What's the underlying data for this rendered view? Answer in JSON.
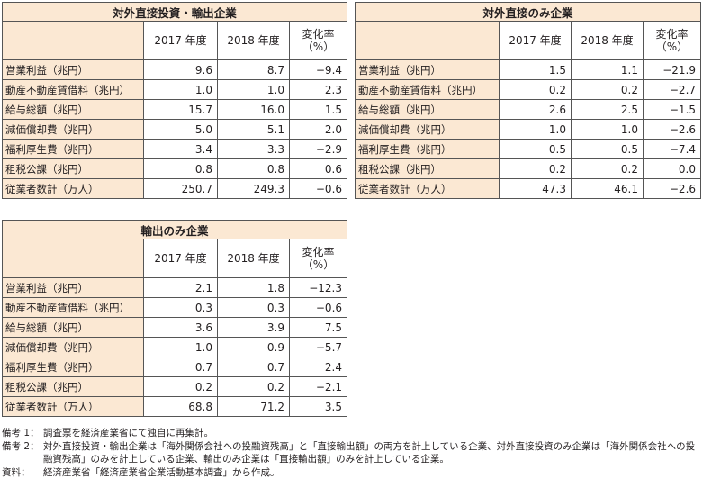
{
  "tables": [
    {
      "title": "対外直接投資・輸出企業",
      "headers": [
        "2017 年度",
        "2018 年度",
        "変化率",
        "（%）"
      ],
      "rows": [
        {
          "label": "営業利益（兆円）",
          "v2017": "9.6",
          "v2018": "8.7",
          "change": "−9.4"
        },
        {
          "label": "動産不動産賃借料（兆円）",
          "v2017": "1.0",
          "v2018": "1.0",
          "change": "2.3"
        },
        {
          "label": "給与総額（兆円）",
          "v2017": "15.7",
          "v2018": "16.0",
          "change": "1.5"
        },
        {
          "label": "減価償却費（兆円）",
          "v2017": "5.0",
          "v2018": "5.1",
          "change": "2.0"
        },
        {
          "label": "福利厚生費（兆円）",
          "v2017": "3.4",
          "v2018": "3.3",
          "change": "−2.9"
        },
        {
          "label": "租税公課（兆円）",
          "v2017": "0.8",
          "v2018": "0.8",
          "change": "0.6"
        },
        {
          "label": "従業者数計（万人）",
          "v2017": "250.7",
          "v2018": "249.3",
          "change": "−0.6"
        }
      ]
    },
    {
      "title": "対外直接のみ企業",
      "headers": [
        "2017 年度",
        "2018 年度",
        "変化率",
        "（%）"
      ],
      "rows": [
        {
          "label": "営業利益（兆円）",
          "v2017": "1.5",
          "v2018": "1.1",
          "change": "−21.9"
        },
        {
          "label": "動産不動産賃借料（兆円）",
          "v2017": "0.2",
          "v2018": "0.2",
          "change": "−2.7"
        },
        {
          "label": "給与総額（兆円）",
          "v2017": "2.6",
          "v2018": "2.5",
          "change": "−1.5"
        },
        {
          "label": "減価償却費（兆円）",
          "v2017": "1.0",
          "v2018": "1.0",
          "change": "−2.6"
        },
        {
          "label": "福利厚生費（兆円）",
          "v2017": "0.5",
          "v2018": "0.5",
          "change": "−7.4"
        },
        {
          "label": "租税公課（兆円）",
          "v2017": "0.2",
          "v2018": "0.2",
          "change": "0.0"
        },
        {
          "label": "従業者数計（万人）",
          "v2017": "47.3",
          "v2018": "46.1",
          "change": "−2.6"
        }
      ]
    },
    {
      "title": "輸出のみ企業",
      "headers": [
        "2017 年度",
        "2018 年度",
        "変化率",
        "（%）"
      ],
      "rows": [
        {
          "label": "営業利益（兆円）",
          "v2017": "2.1",
          "v2018": "1.8",
          "change": "−12.3"
        },
        {
          "label": "動産不動産賃借料（兆円）",
          "v2017": "0.3",
          "v2018": "0.3",
          "change": "−0.6"
        },
        {
          "label": "給与総額（兆円）",
          "v2017": "3.6",
          "v2018": "3.9",
          "change": "7.5"
        },
        {
          "label": "減価償却費（兆円）",
          "v2017": "1.0",
          "v2018": "0.9",
          "change": "−5.7"
        },
        {
          "label": "福利厚生費（兆円）",
          "v2017": "0.7",
          "v2018": "0.7",
          "change": "2.4"
        },
        {
          "label": "租税公課（兆円）",
          "v2017": "0.2",
          "v2018": "0.2",
          "change": "−2.1"
        },
        {
          "label": "従業者数計（万人）",
          "v2017": "68.8",
          "v2018": "71.2",
          "change": "3.5"
        }
      ]
    }
  ],
  "notes": [
    {
      "tag": "備考 1：",
      "text": "調査票を経済産業省にて独自に再集計。"
    },
    {
      "tag": "備考 2：",
      "text": "対外直接投資・輸出企業は「海外関係会社への投融資残高」と「直接輸出額」の両方を計上している企業、対外直接投資のみ企業は「海外関係会社への投融資残高」のみを計上している企業、輸出のみ企業は「直接輸出額」のみを計上している企業。"
    },
    {
      "tag": "資料：",
      "text": "経済産業省「経済産業省企業活動基本調査」から作成。"
    }
  ],
  "colors": {
    "header_fill": "#fbe8d3",
    "border": "#555555",
    "text": "#231f20"
  }
}
